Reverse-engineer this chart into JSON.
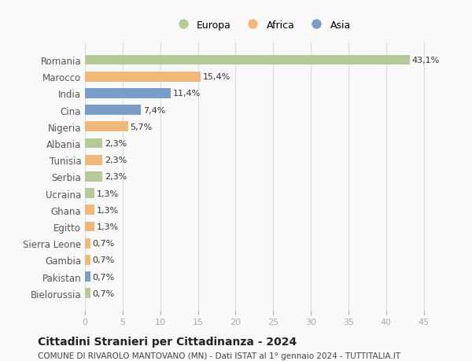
{
  "countries": [
    "Romania",
    "Marocco",
    "India",
    "Cina",
    "Nigeria",
    "Albania",
    "Tunisia",
    "Serbia",
    "Ucraina",
    "Ghana",
    "Egitto",
    "Sierra Leone",
    "Gambia",
    "Pakistan",
    "Bielorussia"
  ],
  "values": [
    43.1,
    15.4,
    11.4,
    7.4,
    5.7,
    2.3,
    2.3,
    2.3,
    1.3,
    1.3,
    1.3,
    0.7,
    0.7,
    0.7,
    0.7
  ],
  "labels": [
    "43,1%",
    "15,4%",
    "11,4%",
    "7,4%",
    "5,7%",
    "2,3%",
    "2,3%",
    "2,3%",
    "1,3%",
    "1,3%",
    "1,3%",
    "0,7%",
    "0,7%",
    "0,7%",
    "0,7%"
  ],
  "bar_colors": [
    "#b5c99a",
    "#f0b87b",
    "#7b9ec8",
    "#7b9ec8",
    "#f0b87b",
    "#b5c99a",
    "#f0b87b",
    "#b5c99a",
    "#b5c99a",
    "#f0b87b",
    "#f0b87b",
    "#f0b87b",
    "#f0b87b",
    "#7b9ec8",
    "#b5c99a"
  ],
  "title": "Cittadini Stranieri per Cittadinanza - 2024",
  "subtitle": "COMUNE DI RIVAROLO MANTOVANO (MN) - Dati ISTAT al 1° gennaio 2024 - TUTTITALIA.IT",
  "xlim": [
    0,
    47
  ],
  "xticks": [
    0,
    5,
    10,
    15,
    20,
    25,
    30,
    35,
    40,
    45
  ],
  "background_color": "#f9f9f9",
  "grid_color": "#dddddd",
  "legend_labels": [
    "Europa",
    "Africa",
    "Asia"
  ],
  "legend_colors": [
    "#b5c99a",
    "#f0b87b",
    "#7b9ec8"
  ]
}
